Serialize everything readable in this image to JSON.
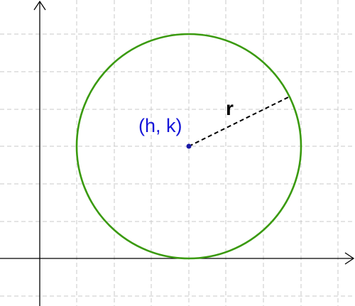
{
  "diagram": {
    "center_label": "(h, k)",
    "radius_label": "r",
    "colors": {
      "circle": "#3a9a0e",
      "center_point": "#1a1aa6",
      "center_label": "#1515d9",
      "radius_line": "#000000",
      "grid": "#c8c8c8",
      "axes": "#000000"
    },
    "grid": true,
    "circle": {
      "center": [
        4,
        3
      ],
      "radius": 3,
      "tangent_to_x_axis": true
    },
    "radius_direction": "upper-right"
  }
}
